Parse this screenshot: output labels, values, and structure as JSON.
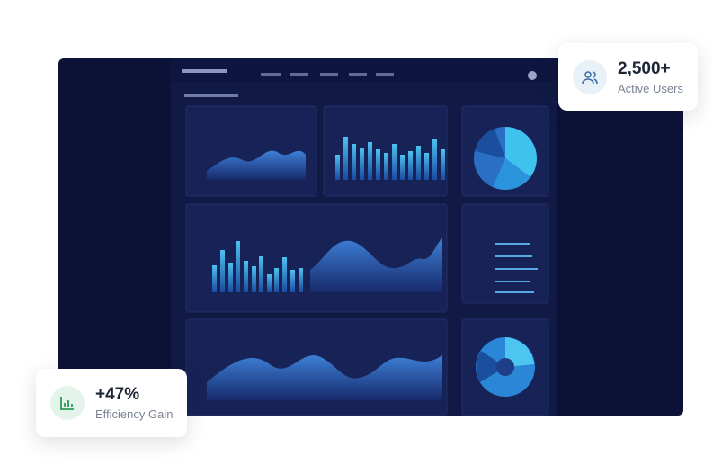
{
  "cards": [
    {
      "value": "2,500+",
      "label": "Active Users"
    },
    {
      "value": "+47%",
      "label": "Efficiency Gain"
    }
  ]
}
